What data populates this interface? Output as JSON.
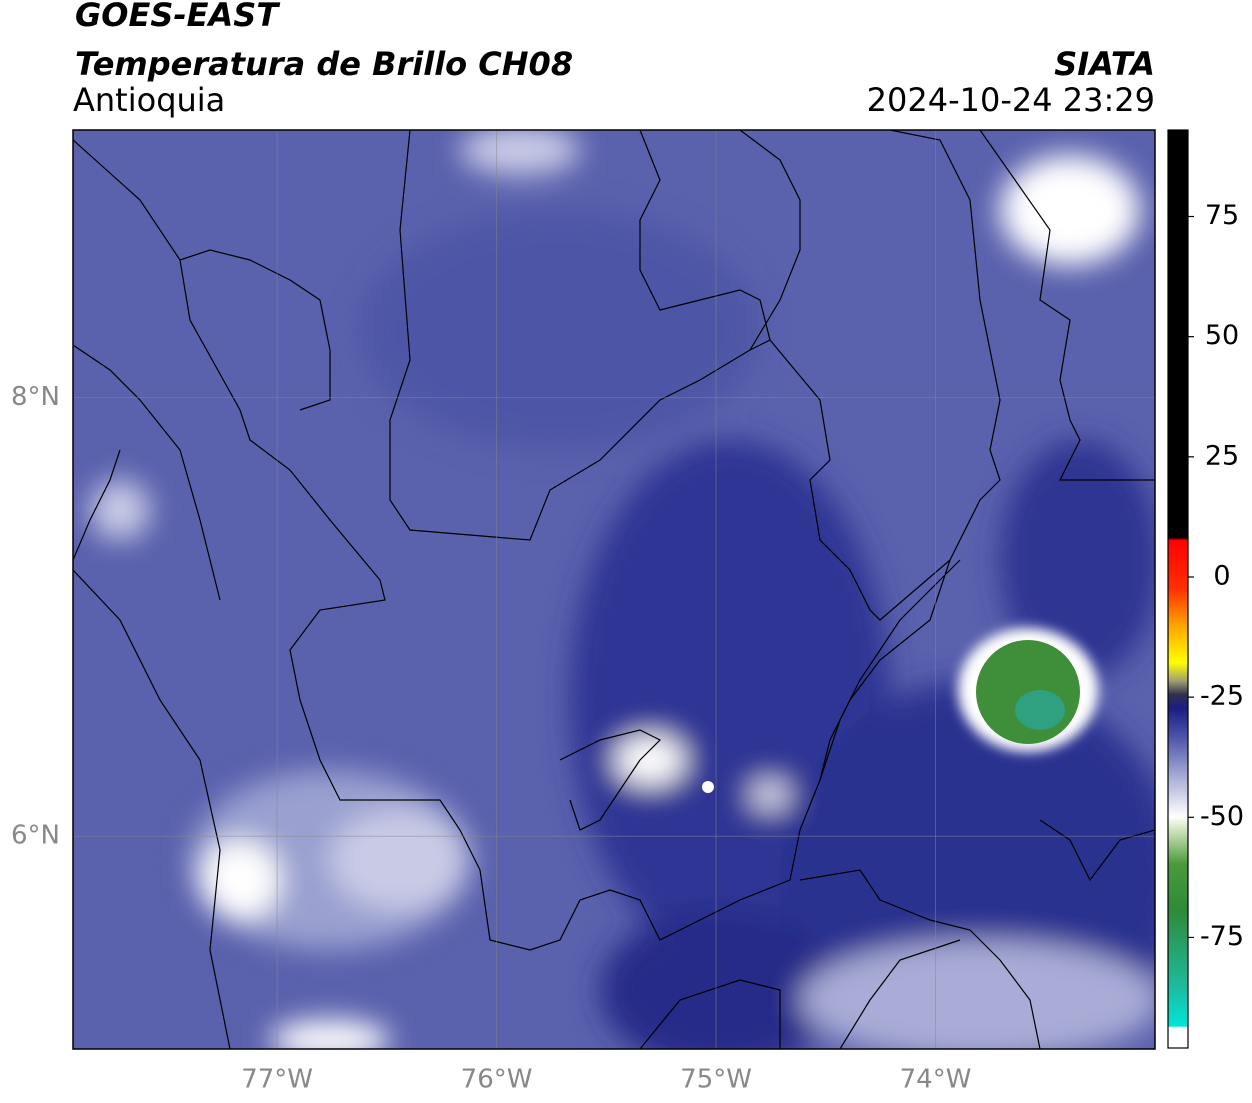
{
  "header": {
    "title": "GOES-EAST",
    "subtitle": "Temperatura de Brillo CH08",
    "region": "Antioquia",
    "source": "SIATA",
    "datetime": "2024-10-24 23:29"
  },
  "map": {
    "xlim": [
      -77.93,
      -73.0
    ],
    "ylim": [
      5.03,
      9.22
    ],
    "xticks": [
      {
        "value": -77,
        "label": "77°W"
      },
      {
        "value": -76,
        "label": "76°W"
      },
      {
        "value": -75,
        "label": "75°W"
      },
      {
        "value": -74,
        "label": "74°W"
      }
    ],
    "yticks": [
      {
        "value": 6,
        "label": "6°N"
      },
      {
        "value": 8,
        "label": "8°N"
      }
    ],
    "grid": true
  },
  "colorbar": {
    "lim": [
      -98,
      93
    ],
    "ticks": [
      75,
      50,
      25,
      0,
      -25,
      -50,
      -75
    ]
  }
}
